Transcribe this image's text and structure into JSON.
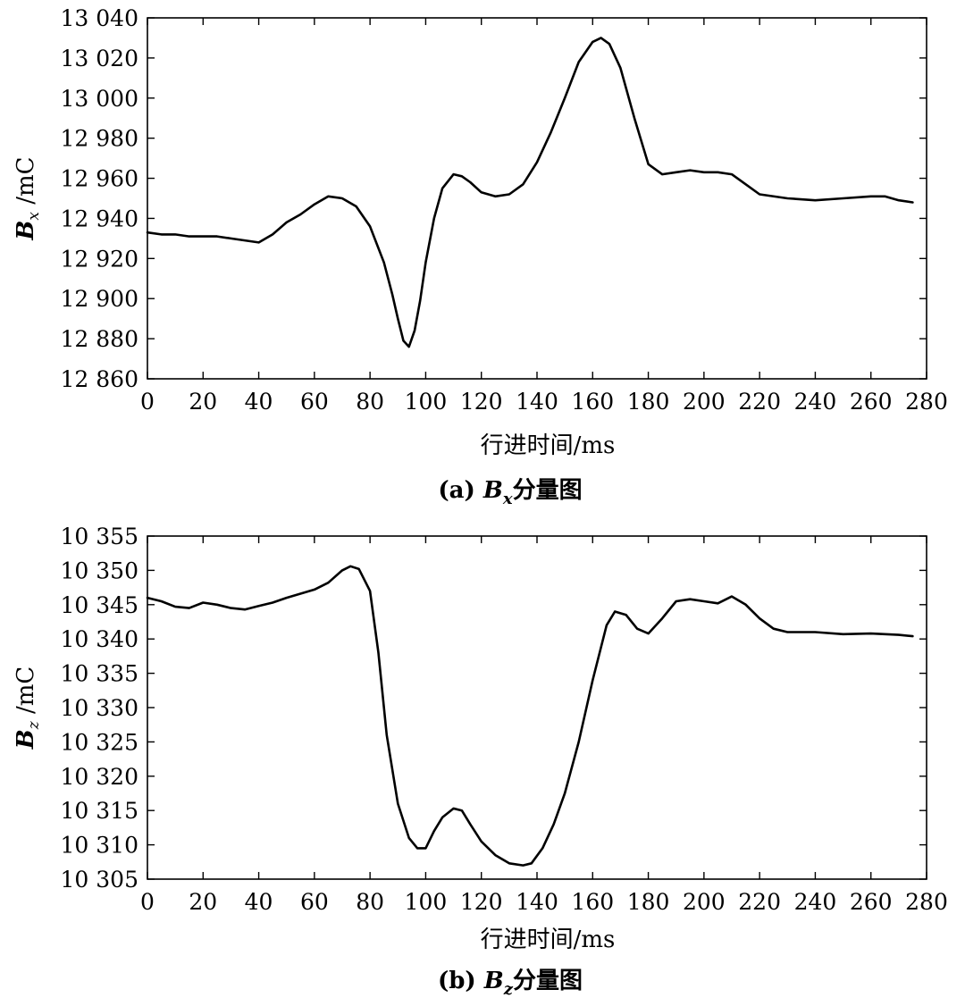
{
  "chart_data": [
    {
      "type": "line",
      "caption": {
        "prefix": "(a) ",
        "symbol": "B",
        "subscript": "x",
        "suffix": "分量图"
      },
      "xlabel": "行进时间/ms",
      "ylabel": {
        "symbol": "B",
        "subscript": "x",
        "unit": " /mC"
      },
      "xlim": [
        0,
        280
      ],
      "ylim": [
        12860,
        13040
      ],
      "xticks": [
        0,
        20,
        40,
        60,
        80,
        100,
        120,
        140,
        160,
        180,
        200,
        220,
        240,
        260,
        280
      ],
      "yticks": [
        12860,
        12880,
        12900,
        12920,
        12940,
        12960,
        12980,
        13000,
        13020,
        13040
      ],
      "xtick_labels": [
        "0",
        "20",
        "40",
        "60",
        "80",
        "100",
        "120",
        "140",
        "160",
        "180",
        "200",
        "220",
        "240",
        "260",
        "280"
      ],
      "ytick_labels": [
        "12 860",
        "12 880",
        "12 900",
        "12 920",
        "12 940",
        "12 960",
        "12 980",
        "13 000",
        "13 020",
        "13 040"
      ],
      "grid": false,
      "series": [
        {
          "x": [
            0,
            5,
            10,
            15,
            20,
            25,
            30,
            35,
            40,
            45,
            50,
            55,
            60,
            65,
            70,
            75,
            80,
            85,
            88,
            90,
            92,
            94,
            96,
            98,
            100,
            103,
            106,
            110,
            113,
            116,
            120,
            125,
            130,
            135,
            140,
            145,
            150,
            155,
            160,
            163,
            166,
            170,
            175,
            180,
            185,
            190,
            195,
            200,
            205,
            210,
            215,
            220,
            230,
            240,
            250,
            260,
            265,
            270,
            275
          ],
          "y": [
            12933,
            12932,
            12932,
            12931,
            12931,
            12931,
            12930,
            12929,
            12928,
            12932,
            12938,
            12942,
            12947,
            12951,
            12950,
            12946,
            12936,
            12918,
            12902,
            12890,
            12879,
            12876,
            12884,
            12899,
            12918,
            12940,
            12955,
            12962,
            12961,
            12958,
            12953,
            12951,
            12952,
            12957,
            12968,
            12983,
            13000,
            13018,
            13028,
            13030,
            13027,
            13015,
            12990,
            12967,
            12962,
            12963,
            12964,
            12963,
            12963,
            12962,
            12957,
            12952,
            12950,
            12949,
            12950,
            12951,
            12951,
            12949,
            12948
          ]
        }
      ]
    },
    {
      "type": "line",
      "caption": {
        "prefix": "(b) ",
        "symbol": "B",
        "subscript": "z",
        "suffix": "分量图"
      },
      "xlabel": "行进时间/ms",
      "ylabel": {
        "symbol": "B",
        "subscript": "z",
        "unit": " /mC"
      },
      "xlim": [
        0,
        280
      ],
      "ylim": [
        10305,
        10355
      ],
      "xticks": [
        0,
        20,
        40,
        60,
        80,
        100,
        120,
        140,
        160,
        180,
        200,
        220,
        240,
        260,
        280
      ],
      "yticks": [
        10305,
        10310,
        10315,
        10320,
        10325,
        10330,
        10335,
        10340,
        10345,
        10350,
        10355
      ],
      "xtick_labels": [
        "0",
        "20",
        "40",
        "60",
        "80",
        "100",
        "120",
        "140",
        "160",
        "180",
        "200",
        "220",
        "240",
        "260",
        "280"
      ],
      "ytick_labels": [
        "10 305",
        "10 310",
        "10 315",
        "10 320",
        "10 325",
        "10 330",
        "10 335",
        "10 340",
        "10 345",
        "10 350",
        "10 355"
      ],
      "grid": false,
      "series": [
        {
          "x": [
            0,
            5,
            10,
            15,
            20,
            25,
            30,
            35,
            40,
            45,
            50,
            55,
            60,
            65,
            70,
            73,
            76,
            80,
            83,
            86,
            90,
            94,
            97,
            100,
            103,
            106,
            110,
            113,
            116,
            120,
            125,
            130,
            135,
            138,
            142,
            146,
            150,
            155,
            160,
            165,
            168,
            172,
            176,
            180,
            185,
            190,
            195,
            200,
            205,
            210,
            215,
            220,
            225,
            230,
            240,
            250,
            260,
            270,
            275
          ],
          "y": [
            10346,
            10345.5,
            10344.7,
            10344.5,
            10345.3,
            10345,
            10344.5,
            10344.3,
            10344.8,
            10345.3,
            10346,
            10346.6,
            10347.2,
            10348.2,
            10350,
            10350.6,
            10350.2,
            10347,
            10338,
            10326,
            10316,
            10311,
            10309.5,
            10309.5,
            10312,
            10314,
            10315.3,
            10315,
            10313,
            10310.5,
            10308.5,
            10307.3,
            10307,
            10307.3,
            10309.5,
            10313,
            10317.5,
            10325,
            10334,
            10342,
            10344,
            10343.5,
            10341.5,
            10340.8,
            10343,
            10345.5,
            10345.8,
            10345.5,
            10345.2,
            10346.2,
            10345,
            10343,
            10341.5,
            10341,
            10341,
            10340.7,
            10340.8,
            10340.6,
            10340.4
          ]
        }
      ]
    }
  ]
}
